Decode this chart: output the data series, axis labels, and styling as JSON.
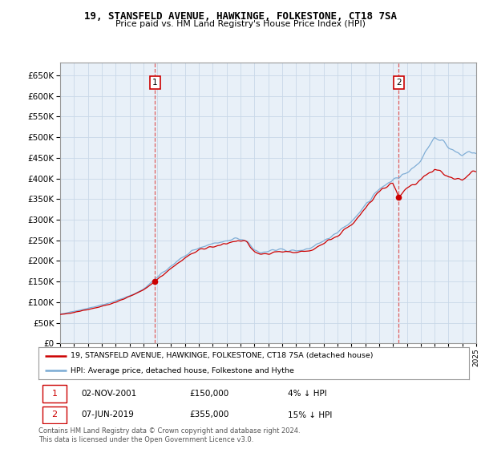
{
  "title": "19, STANSFELD AVENUE, HAWKINGE, FOLKESTONE, CT18 7SA",
  "subtitle": "Price paid vs. HM Land Registry's House Price Index (HPI)",
  "sale1_date": "02-NOV-2001",
  "sale1_price": 150000,
  "sale1_pct": "4%",
  "sale2_date": "07-JUN-2019",
  "sale2_price": 355000,
  "sale2_pct": "15%",
  "legend_line1": "19, STANSFELD AVENUE, HAWKINGE, FOLKESTONE, CT18 7SA (detached house)",
  "legend_line2": "HPI: Average price, detached house, Folkestone and Hythe",
  "footer": "Contains HM Land Registry data © Crown copyright and database right 2024.\nThis data is licensed under the Open Government Licence v3.0.",
  "ylim": [
    0,
    680000
  ],
  "yticks": [
    0,
    50000,
    100000,
    150000,
    200000,
    250000,
    300000,
    350000,
    400000,
    450000,
    500000,
    550000,
    600000,
    650000
  ],
  "hpi_color": "#7aaad4",
  "price_color": "#cc0000",
  "sale_marker_color": "#cc0000",
  "vline_color": "#dd4444",
  "chart_bg": "#e8f0f8",
  "grid_color": "#c8d8e8",
  "annotation_box_color": "#cc0000",
  "sale1_t": 2001.833,
  "sale2_t": 2019.417
}
